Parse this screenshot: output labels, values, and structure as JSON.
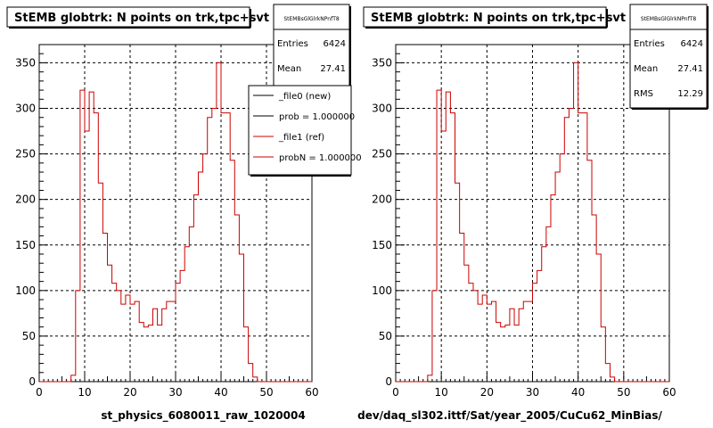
{
  "chart_data": [
    {
      "type": "bar",
      "title": "StEMB globtrk: N points on trk,tpc+svt",
      "xlabel": "st_physics_6080011_raw_1020004",
      "ylabel": "",
      "xlim": [
        0,
        60
      ],
      "ylim": [
        0,
        370
      ],
      "xticks": [
        "0",
        "10",
        "20",
        "30",
        "40",
        "50",
        "60"
      ],
      "yticks": [
        "0",
        "50",
        "100",
        "150",
        "200",
        "250",
        "300",
        "350"
      ],
      "grid": true,
      "bin_width": 1,
      "x": [
        0,
        1,
        2,
        3,
        4,
        5,
        6,
        7,
        8,
        9,
        10,
        11,
        12,
        13,
        14,
        15,
        16,
        17,
        18,
        19,
        20,
        21,
        22,
        23,
        24,
        25,
        26,
        27,
        28,
        29,
        30,
        31,
        32,
        33,
        34,
        35,
        36,
        37,
        38,
        39,
        40,
        41,
        42,
        43,
        44,
        45,
        46,
        47,
        48,
        49,
        50,
        51,
        52,
        53,
        54,
        55,
        56,
        57,
        58,
        59
      ],
      "series": [
        {
          "name": "_file1 (ref)",
          "color": "#cc0000",
          "values": [
            0,
            0,
            0,
            0,
            0,
            0,
            0,
            7,
            100,
            320,
            275,
            318,
            295,
            218,
            163,
            128,
            108,
            100,
            85,
            95,
            85,
            88,
            65,
            60,
            62,
            80,
            62,
            80,
            88,
            88,
            108,
            122,
            148,
            170,
            205,
            230,
            250,
            290,
            300,
            350,
            295,
            295,
            243,
            183,
            140,
            60,
            20,
            5,
            0,
            0,
            0,
            0,
            0,
            0,
            0,
            0,
            0,
            0,
            0,
            0
          ]
        }
      ],
      "stats": {
        "title": "StEMBsGlGlrkNPnfT8",
        "entries_label": "Entries",
        "entries": "6424",
        "mean_label": "Mean",
        "mean": "27.41"
      },
      "legend": {
        "position": "top-right",
        "entries": [
          {
            "label": "_file0 (new)",
            "color": "#000000"
          },
          {
            "label": "prob = 1.000000",
            "color": "#000000"
          },
          {
            "label": "_file1 (ref)",
            "color": "#cc0000"
          },
          {
            "label": "probN = 1.000000",
            "color": "#cc0000"
          }
        ]
      }
    },
    {
      "type": "bar",
      "title": "StEMB globtrk: N points on trk,tpc+svt",
      "xlabel": "dev/daq_sl302.ittf/Sat/year_2005/CuCu62_MinBias/",
      "ylabel": "",
      "xlim": [
        0,
        60
      ],
      "ylim": [
        0,
        370
      ],
      "xticks": [
        "0",
        "10",
        "20",
        "30",
        "40",
        "50",
        "60"
      ],
      "yticks": [
        "0",
        "50",
        "100",
        "150",
        "200",
        "250",
        "300",
        "350"
      ],
      "grid": true,
      "bin_width": 1,
      "x": [
        0,
        1,
        2,
        3,
        4,
        5,
        6,
        7,
        8,
        9,
        10,
        11,
        12,
        13,
        14,
        15,
        16,
        17,
        18,
        19,
        20,
        21,
        22,
        23,
        24,
        25,
        26,
        27,
        28,
        29,
        30,
        31,
        32,
        33,
        34,
        35,
        36,
        37,
        38,
        39,
        40,
        41,
        42,
        43,
        44,
        45,
        46,
        47,
        48,
        49,
        50,
        51,
        52,
        53,
        54,
        55,
        56,
        57,
        58,
        59
      ],
      "series": [
        {
          "name": "",
          "color": "#cc0000",
          "values": [
            0,
            0,
            0,
            0,
            0,
            0,
            0,
            7,
            100,
            320,
            275,
            318,
            295,
            218,
            163,
            128,
            108,
            100,
            85,
            95,
            85,
            88,
            65,
            60,
            62,
            80,
            62,
            80,
            88,
            88,
            108,
            122,
            148,
            170,
            205,
            230,
            250,
            290,
            300,
            350,
            295,
            295,
            243,
            183,
            140,
            60,
            20,
            5,
            0,
            0,
            0,
            0,
            0,
            0,
            0,
            0,
            0,
            0,
            0,
            0
          ]
        }
      ],
      "stats": {
        "title": "StEMBsGlGlrkNPnfT8",
        "entries_label": "Entries",
        "entries": "6424",
        "mean_label": "Mean",
        "mean": "27.41",
        "rms_label": "RMS",
        "rms": "12.29"
      }
    }
  ]
}
